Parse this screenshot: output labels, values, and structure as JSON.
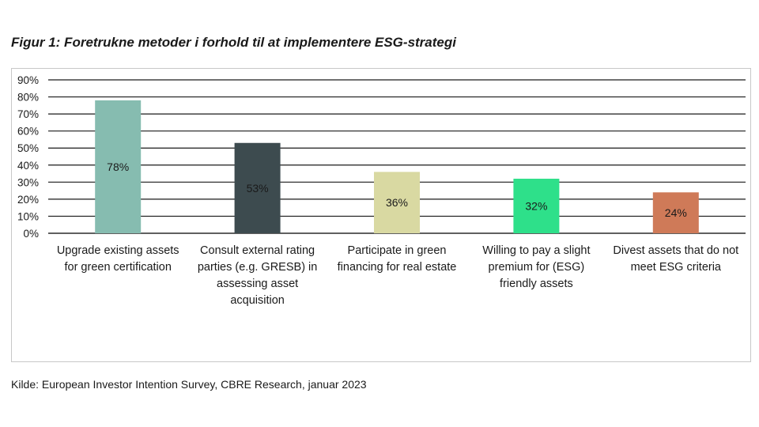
{
  "figure_title": "Figur 1: Foretrukne metoder i forhold til at implementere ESG-strategi",
  "source": "Kilde: European Investor Intention Survey, CBRE Research, januar 2023",
  "chart_data": {
    "type": "bar",
    "title": "Figur 1: Foretrukne metoder i forhold til at implementere ESG-strategi",
    "xlabel": "",
    "ylabel": "",
    "ylim": [
      0,
      90
    ],
    "yticks": [
      "0%",
      "10%",
      "20%",
      "30%",
      "40%",
      "50%",
      "60%",
      "70%",
      "80%",
      "90%"
    ],
    "grid": true,
    "legend": "none",
    "categories": [
      "Upgrade existing assets for green certification",
      "Consult external rating parties (e.g. GRESB) in assessing asset acquisition",
      "Participate in green financing for real estate",
      "Willing to pay a slight premium for (ESG) friendly assets",
      "Divest assets that do not meet ESG criteria"
    ],
    "category_lines": [
      [
        "Upgrade existing assets",
        "for green certification"
      ],
      [
        "Consult external rating",
        "parties (e.g. GRESB) in",
        "assessing asset",
        "acquisition"
      ],
      [
        "Participate in green",
        "financing for real estate"
      ],
      [
        "Willing to pay a slight",
        "premium for (ESG)",
        "friendly assets"
      ],
      [
        "Divest assets that do not",
        "meet ESG criteria"
      ]
    ],
    "values": [
      78,
      53,
      36,
      32,
      24
    ],
    "value_labels": [
      "78%",
      "53%",
      "36%",
      "32%",
      "24%"
    ],
    "colors": [
      "#86bcb0",
      "#3d4b4f",
      "#d9d9a2",
      "#2ee08a",
      "#cf7a58"
    ]
  }
}
